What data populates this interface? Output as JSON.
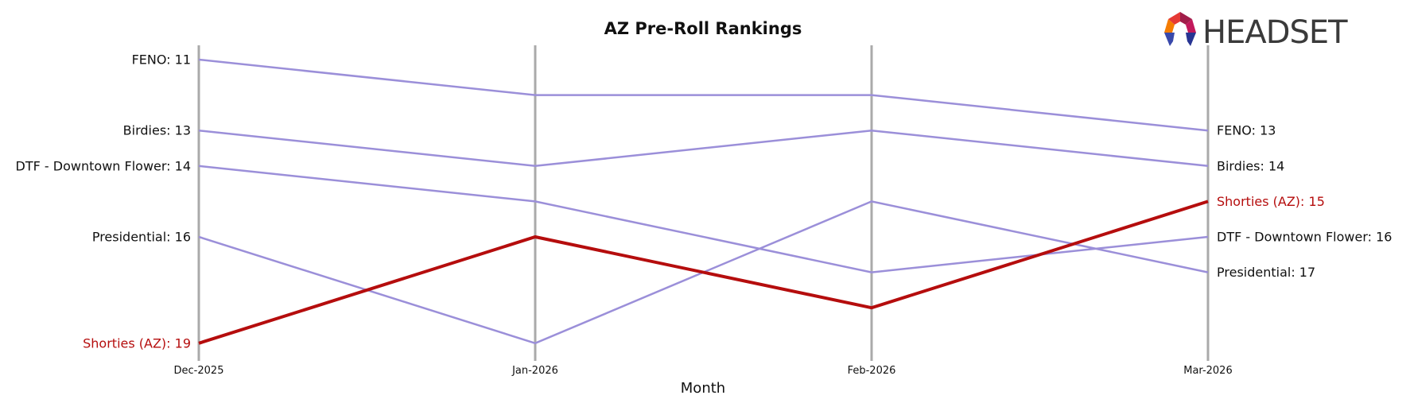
{
  "chart_data": {
    "type": "line",
    "title": "AZ Pre-Roll Rankings",
    "xlabel": "Month",
    "ylabel": "",
    "categories": [
      "Dec-2025",
      "Jan-2026",
      "Feb-2026",
      "Mar-2026"
    ],
    "ylim": [
      19,
      11
    ],
    "y_inverted": true,
    "grid": false,
    "series": [
      {
        "name": "FENO",
        "values": [
          11,
          12,
          12,
          13
        ],
        "color": "#9b8fd9",
        "highlight": false
      },
      {
        "name": "Birdies",
        "values": [
          13,
          14,
          13,
          14
        ],
        "color": "#9b8fd9",
        "highlight": false
      },
      {
        "name": "DTF - Downtown Flower",
        "values": [
          14,
          15,
          17,
          16
        ],
        "color": "#9b8fd9",
        "highlight": false
      },
      {
        "name": "Presidential",
        "values": [
          16,
          19,
          15,
          17
        ],
        "color": "#9b8fd9",
        "highlight": false
      },
      {
        "name": "Shorties (AZ)",
        "values": [
          19,
          16,
          18,
          15
        ],
        "color": "#b50d0d",
        "highlight": true
      }
    ],
    "left_labels": [
      {
        "text": "FENO: 11",
        "series": 0
      },
      {
        "text": "Birdies: 13",
        "series": 1
      },
      {
        "text": "DTF - Downtown Flower: 14",
        "series": 2
      },
      {
        "text": "Presidential: 16",
        "series": 3
      },
      {
        "text": "Shorties (AZ): 19",
        "series": 4
      }
    ],
    "right_labels": [
      {
        "text": "FENO: 13",
        "series": 0
      },
      {
        "text": "Birdies: 14",
        "series": 1
      },
      {
        "text": "Shorties (AZ): 15",
        "series": 4
      },
      {
        "text": "DTF - Downtown Flower: 16",
        "series": 2
      },
      {
        "text": "Presidential: 17",
        "series": 3
      }
    ]
  },
  "logo": {
    "text": "HEADSET",
    "icon": "headset-hexagon-logo"
  },
  "colors": {
    "highlight": "#b50d0d",
    "base": "#9b8fd9",
    "label": "#111111",
    "axis": "#aaaaaa"
  }
}
